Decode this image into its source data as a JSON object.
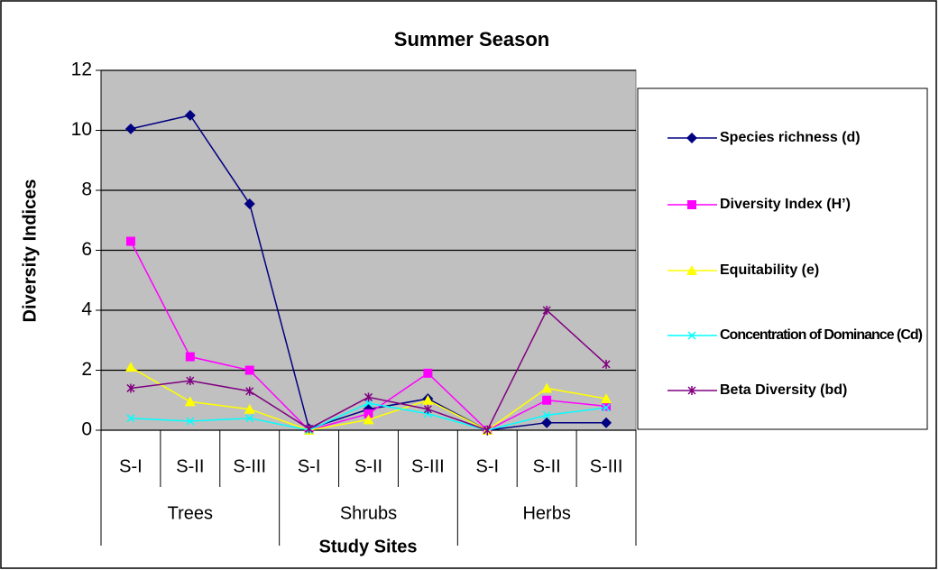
{
  "chart_data": {
    "type": "line",
    "title": "Summer Season",
    "x_label": "Study Sites",
    "y_label": "Diversity Indices",
    "categories": [
      "S-I",
      "S-II",
      "S-III",
      "S-I",
      "S-II",
      "S-III",
      "S-I",
      "S-II",
      "S-III"
    ],
    "groups": [
      "Trees",
      "Shrubs",
      "Herbs"
    ],
    "series": [
      {
        "name": "Species richness (d)",
        "color": "#000080",
        "marker": "diamond",
        "values": [
          10.05,
          10.5,
          7.55,
          0.05,
          0.7,
          1.05,
          0,
          0.25,
          0.25
        ]
      },
      {
        "name": "Diversity  Index (H’)",
        "color": "#ff00ff",
        "marker": "square",
        "values": [
          6.3,
          2.45,
          2.0,
          0,
          0.55,
          1.9,
          0,
          1.0,
          0.8
        ]
      },
      {
        "name": "Equitability (e)",
        "color": "#ffff00",
        "marker": "triangle",
        "values": [
          2.1,
          0.95,
          0.7,
          0,
          0.35,
          1.0,
          0,
          1.4,
          1.05
        ]
      },
      {
        "name": "Concentration of Dominance (Cd)",
        "color": "#00ffff",
        "marker": "x",
        "values": [
          0.4,
          0.3,
          0.4,
          0,
          0.9,
          0.55,
          0,
          0.5,
          0.75
        ]
      },
      {
        "name": "Beta Diversity (bd)",
        "color": "#800080",
        "marker": "star",
        "values": [
          1.4,
          1.65,
          1.3,
          0.05,
          1.1,
          0.7,
          0,
          4.0,
          2.2
        ]
      }
    ],
    "ylim": [
      0,
      12
    ],
    "yticks": [
      0,
      2,
      4,
      6,
      8,
      10,
      12
    ],
    "grid": true,
    "legend": "right",
    "plot_background": "#c0c0c0"
  }
}
